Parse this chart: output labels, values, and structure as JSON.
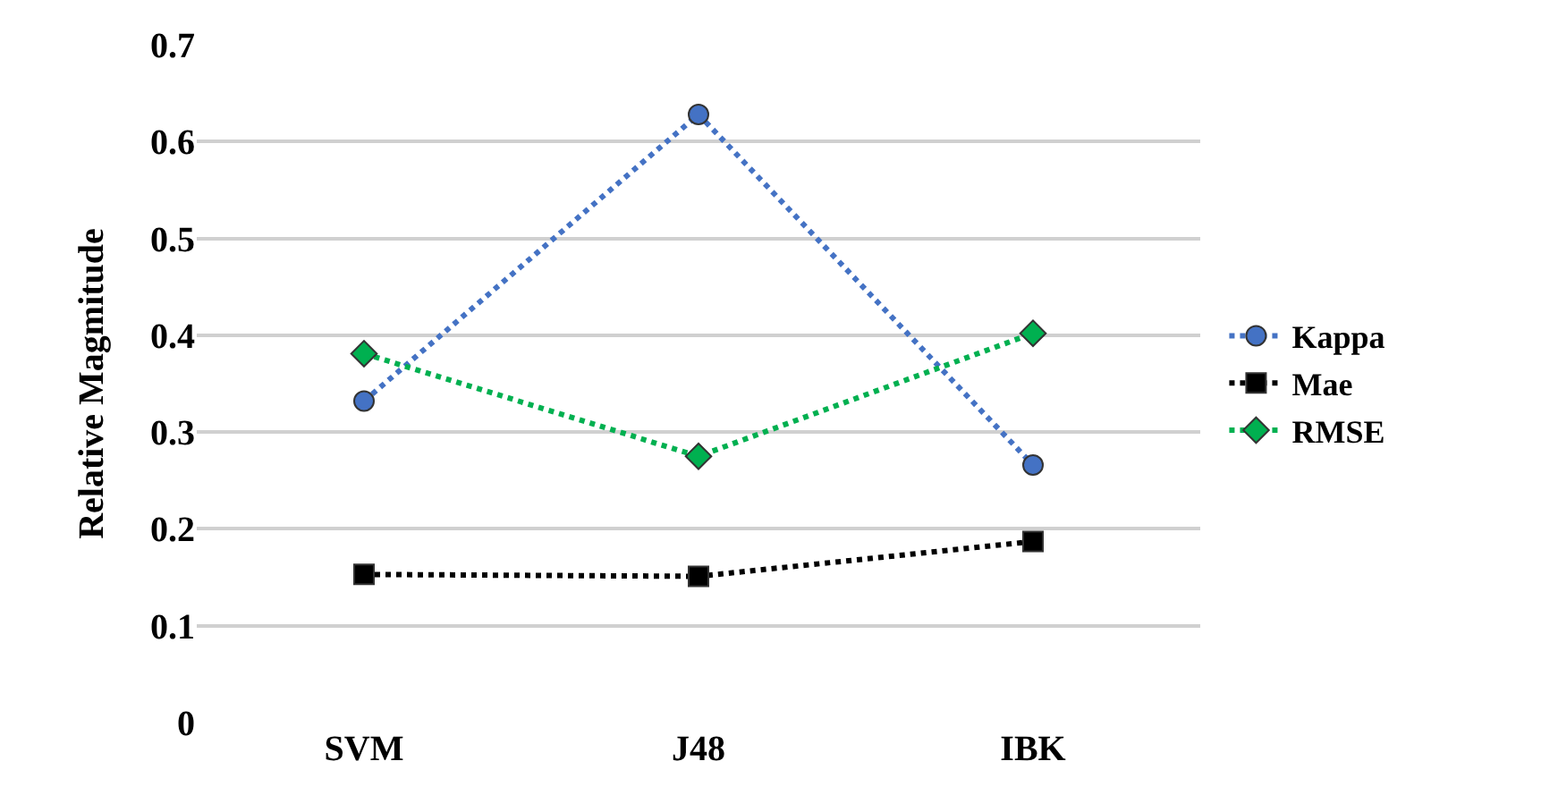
{
  "chart_data": {
    "type": "line",
    "ylabel": "Relative Magmitude",
    "categories": [
      "SVM",
      "J48",
      "IBK"
    ],
    "series": [
      {
        "name": "Kappa",
        "color": "#4472c4",
        "marker": "circle",
        "values": [
          0.332,
          0.628,
          0.266
        ]
      },
      {
        "name": "Mae",
        "color": "#000000",
        "marker": "square",
        "values": [
          0.153,
          0.151,
          0.187
        ]
      },
      {
        "name": "RMSE",
        "color": "#00b050",
        "marker": "diamond",
        "values": [
          0.381,
          0.275,
          0.402
        ]
      }
    ],
    "ylim": [
      0,
      0.7
    ],
    "yticks": [
      0,
      0.1,
      0.2,
      0.3,
      0.4,
      0.5,
      0.6,
      0.7
    ],
    "grid": "y",
    "legend": "right",
    "line_style": "dotted"
  }
}
